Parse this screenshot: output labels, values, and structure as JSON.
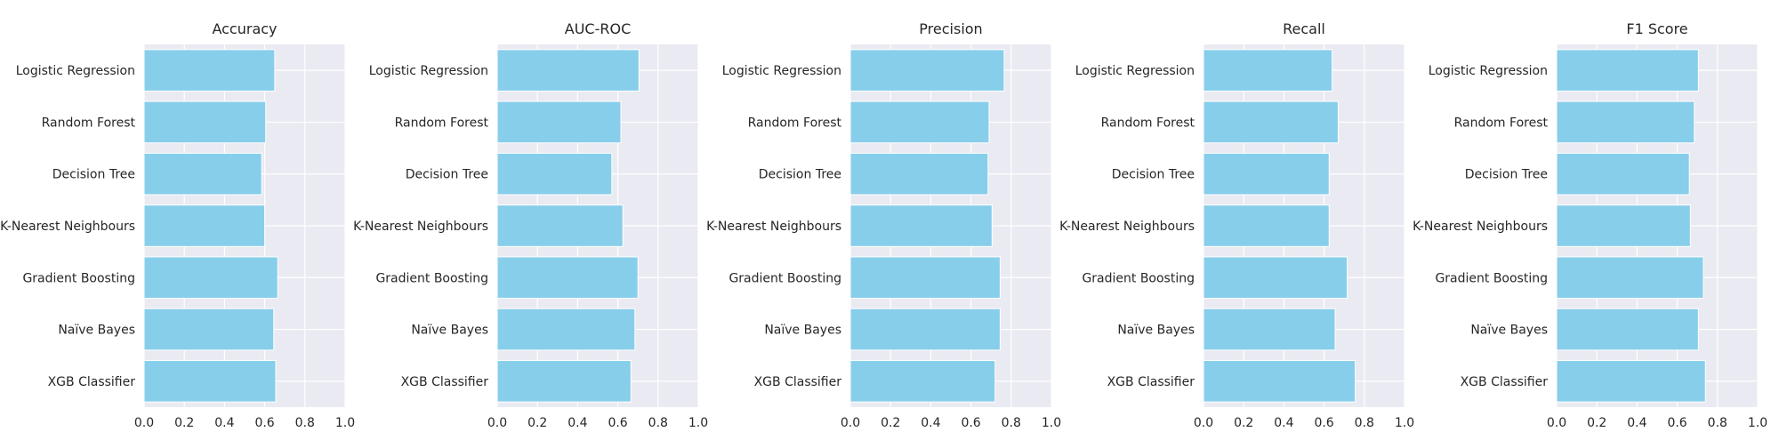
{
  "chart_data": [
    {
      "type": "bar",
      "orientation": "horizontal",
      "title": "Accuracy",
      "categories": [
        "Logistic Regression",
        "Random Forest",
        "Decision Tree",
        "K-Nearest Neighbours",
        "Gradient Boosting",
        "Naïve Bayes",
        "XGB Classifier"
      ],
      "values": [
        0.65,
        0.605,
        0.585,
        0.6,
        0.665,
        0.645,
        0.655
      ],
      "xlim": [
        0.0,
        1.0
      ],
      "xticks": [
        "0.0",
        "0.2",
        "0.4",
        "0.6",
        "0.8",
        "1.0"
      ],
      "xlabel": "",
      "ylabel": "",
      "grid": true,
      "bar_color": "#87CEEB"
    },
    {
      "type": "bar",
      "orientation": "horizontal",
      "title": "AUC-ROC",
      "categories": [
        "Logistic Regression",
        "Random Forest",
        "Decision Tree",
        "K-Nearest Neighbours",
        "Gradient Boosting",
        "Naïve Bayes",
        "XGB Classifier"
      ],
      "values": [
        0.705,
        0.615,
        0.57,
        0.625,
        0.7,
        0.685,
        0.665
      ],
      "xlim": [
        0.0,
        1.0
      ],
      "xticks": [
        "0.0",
        "0.2",
        "0.4",
        "0.6",
        "0.8",
        "1.0"
      ],
      "xlabel": "",
      "ylabel": "",
      "grid": true,
      "bar_color": "#87CEEB"
    },
    {
      "type": "bar",
      "orientation": "horizontal",
      "title": "Precision",
      "categories": [
        "Logistic Regression",
        "Random Forest",
        "Decision Tree",
        "K-Nearest Neighbours",
        "Gradient Boosting",
        "Naïve Bayes",
        "XGB Classifier"
      ],
      "values": [
        0.765,
        0.69,
        0.685,
        0.705,
        0.745,
        0.745,
        0.72
      ],
      "xlim": [
        0.0,
        1.0
      ],
      "xticks": [
        "0.0",
        "0.2",
        "0.4",
        "0.6",
        "0.8",
        "1.0"
      ],
      "xlabel": "",
      "ylabel": "",
      "grid": true,
      "bar_color": "#87CEEB"
    },
    {
      "type": "bar",
      "orientation": "horizontal",
      "title": "Recall",
      "categories": [
        "Logistic Regression",
        "Random Forest",
        "Decision Tree",
        "K-Nearest Neighbours",
        "Gradient Boosting",
        "Naïve Bayes",
        "XGB Classifier"
      ],
      "values": [
        0.64,
        0.67,
        0.625,
        0.625,
        0.715,
        0.655,
        0.755
      ],
      "xlim": [
        0.0,
        1.0
      ],
      "xticks": [
        "0.0",
        "0.2",
        "0.4",
        "0.6",
        "0.8",
        "1.0"
      ],
      "xlabel": "",
      "ylabel": "",
      "grid": true,
      "bar_color": "#87CEEB"
    },
    {
      "type": "bar",
      "orientation": "horizontal",
      "title": "F1 Score",
      "categories": [
        "Logistic Regression",
        "Random Forest",
        "Decision Tree",
        "K-Nearest Neighbours",
        "Gradient Boosting",
        "Naïve Bayes",
        "XGB Classifier"
      ],
      "values": [
        0.705,
        0.685,
        0.66,
        0.665,
        0.73,
        0.705,
        0.74
      ],
      "xlim": [
        0.0,
        1.0
      ],
      "xticks": [
        "0.0",
        "0.2",
        "0.4",
        "0.6",
        "0.8",
        "1.0"
      ],
      "xlabel": "",
      "ylabel": "",
      "grid": true,
      "bar_color": "#87CEEB"
    }
  ],
  "style": {
    "axes_background": "#EAEAF2",
    "grid_color": "#FFFFFF",
    "text_color": "#262626"
  }
}
